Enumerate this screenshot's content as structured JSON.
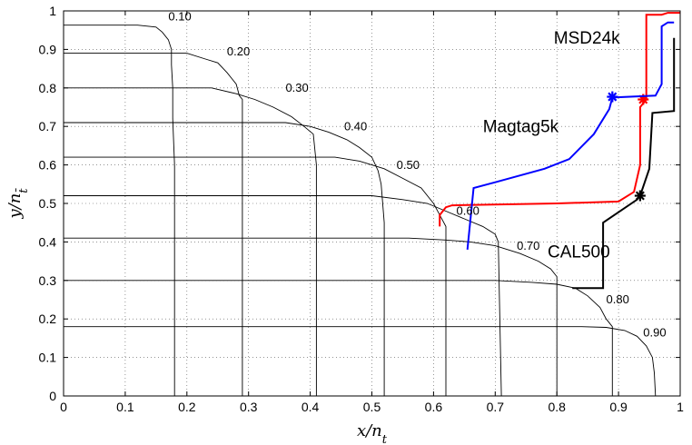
{
  "chart_data": {
    "type": "line",
    "xlabel": "x/n_t",
    "ylabel": "y/n_t̄",
    "xlim": [
      0,
      1
    ],
    "ylim": [
      0,
      1
    ],
    "grid": "dotted",
    "x_ticks": [
      "0",
      "0.1",
      "0.2",
      "0.3",
      "0.4",
      "0.5",
      "0.6",
      "0.7",
      "0.8",
      "0.9",
      "1"
    ],
    "y_ticks": [
      "0",
      "0.1",
      "0.2",
      "0.3",
      "0.4",
      "0.5",
      "0.6",
      "0.7",
      "0.8",
      "0.9",
      "1"
    ],
    "contours": [
      {
        "label": "0.10",
        "label_at": [
          0.17,
          0.975
        ],
        "points": [
          [
            0,
            0.963
          ],
          [
            0.12,
            0.963
          ],
          [
            0.15,
            0.958
          ],
          [
            0.16,
            0.945
          ],
          [
            0.17,
            0.925
          ],
          [
            0.175,
            0.9
          ],
          [
            0.175,
            0.86
          ],
          [
            0.177,
            0.8
          ],
          [
            0.177,
            0.72
          ],
          [
            0.18,
            0.6
          ],
          [
            0.18,
            0.0
          ]
        ]
      },
      {
        "label": "0.20",
        "label_at": [
          0.265,
          0.885
        ],
        "points": [
          [
            0,
            0.89
          ],
          [
            0.2,
            0.89
          ],
          [
            0.23,
            0.875
          ],
          [
            0.25,
            0.865
          ],
          [
            0.265,
            0.84
          ],
          [
            0.28,
            0.81
          ],
          [
            0.285,
            0.78
          ],
          [
            0.29,
            0.77
          ],
          [
            0.29,
            0.0
          ]
        ]
      },
      {
        "label": "0.30",
        "label_at": [
          0.36,
          0.79
        ],
        "points": [
          [
            0,
            0.8
          ],
          [
            0.24,
            0.8
          ],
          [
            0.28,
            0.785
          ],
          [
            0.31,
            0.77
          ],
          [
            0.34,
            0.75
          ],
          [
            0.37,
            0.725
          ],
          [
            0.39,
            0.7
          ],
          [
            0.405,
            0.68
          ],
          [
            0.41,
            0.6
          ],
          [
            0.41,
            0.0
          ]
        ]
      },
      {
        "label": "0.40",
        "label_at": [
          0.455,
          0.69
        ],
        "points": [
          [
            0,
            0.71
          ],
          [
            0.36,
            0.71
          ],
          [
            0.4,
            0.7
          ],
          [
            0.43,
            0.685
          ],
          [
            0.46,
            0.665
          ],
          [
            0.48,
            0.645
          ],
          [
            0.5,
            0.62
          ],
          [
            0.51,
            0.585
          ],
          [
            0.515,
            0.55
          ],
          [
            0.52,
            0.45
          ],
          [
            0.52,
            0.0
          ]
        ]
      },
      {
        "label": "0.50",
        "label_at": [
          0.54,
          0.59
        ],
        "points": [
          [
            0,
            0.62
          ],
          [
            0.44,
            0.62
          ],
          [
            0.48,
            0.61
          ],
          [
            0.52,
            0.59
          ],
          [
            0.55,
            0.565
          ],
          [
            0.58,
            0.54
          ],
          [
            0.6,
            0.5
          ],
          [
            0.61,
            0.47
          ],
          [
            0.62,
            0.44
          ],
          [
            0.62,
            0.0
          ]
        ]
      },
      {
        "label": "0.60",
        "label_at": [
          0.637,
          0.47
        ],
        "points": [
          [
            0,
            0.52
          ],
          [
            0.5,
            0.52
          ],
          [
            0.55,
            0.51
          ],
          [
            0.59,
            0.5
          ],
          [
            0.62,
            0.48
          ],
          [
            0.65,
            0.46
          ],
          [
            0.68,
            0.44
          ],
          [
            0.7,
            0.42
          ],
          [
            0.705,
            0.4
          ],
          [
            0.71,
            0.0
          ]
        ]
      },
      {
        "label": "0.70",
        "label_at": [
          0.735,
          0.38
        ],
        "points": [
          [
            0,
            0.41
          ],
          [
            0.56,
            0.41
          ],
          [
            0.62,
            0.405
          ],
          [
            0.66,
            0.4
          ],
          [
            0.7,
            0.39
          ],
          [
            0.74,
            0.37
          ],
          [
            0.77,
            0.35
          ],
          [
            0.79,
            0.33
          ],
          [
            0.8,
            0.31
          ],
          [
            0.8,
            0.0
          ]
        ]
      },
      {
        "label": "0.80",
        "label_at": [
          0.88,
          0.24
        ],
        "points": [
          [
            0,
            0.3
          ],
          [
            0.7,
            0.3
          ],
          [
            0.76,
            0.295
          ],
          [
            0.8,
            0.29
          ],
          [
            0.83,
            0.28
          ],
          [
            0.85,
            0.26
          ],
          [
            0.87,
            0.23
          ],
          [
            0.88,
            0.2
          ],
          [
            0.89,
            0.18
          ],
          [
            0.89,
            0.0
          ]
        ]
      },
      {
        "label": "0.90",
        "label_at": [
          0.94,
          0.155
        ],
        "points": [
          [
            0,
            0.18
          ],
          [
            0.84,
            0.18
          ],
          [
            0.88,
            0.178
          ],
          [
            0.91,
            0.17
          ],
          [
            0.93,
            0.155
          ],
          [
            0.945,
            0.13
          ],
          [
            0.955,
            0.1
          ],
          [
            0.958,
            0.06
          ],
          [
            0.96,
            0.0
          ]
        ]
      }
    ],
    "series": [
      {
        "name": "MSD24k",
        "color": "#ff0000",
        "label_at": [
          0.795,
          0.915
        ],
        "points": [
          [
            0.61,
            0.44
          ],
          [
            0.61,
            0.47
          ],
          [
            0.62,
            0.49
          ],
          [
            0.63,
            0.495
          ],
          [
            0.8,
            0.5
          ],
          [
            0.9,
            0.505
          ],
          [
            0.925,
            0.53
          ],
          [
            0.935,
            0.6
          ],
          [
            0.935,
            0.75
          ],
          [
            0.945,
            0.77
          ],
          [
            0.945,
            0.99
          ],
          [
            0.97,
            0.99
          ],
          [
            0.98,
            0.995
          ],
          [
            1.0,
            0.995
          ]
        ],
        "marker_at": [
          0.94,
          0.77
        ]
      },
      {
        "name": "Magtag5k",
        "color": "#0000ff",
        "label_at": [
          0.68,
          0.685
        ],
        "points": [
          [
            0.655,
            0.38
          ],
          [
            0.665,
            0.54
          ],
          [
            0.7,
            0.555
          ],
          [
            0.78,
            0.59
          ],
          [
            0.82,
            0.615
          ],
          [
            0.86,
            0.68
          ],
          [
            0.885,
            0.745
          ],
          [
            0.89,
            0.775
          ],
          [
            0.96,
            0.78
          ],
          [
            0.97,
            0.81
          ],
          [
            0.97,
            0.96
          ],
          [
            0.98,
            0.97
          ],
          [
            0.99,
            0.97
          ]
        ],
        "marker_at": [
          0.89,
          0.777
        ]
      },
      {
        "name": "CAL500",
        "color": "#000000",
        "label_at": [
          0.785,
          0.36
        ],
        "points": [
          [
            0.825,
            0.28
          ],
          [
            0.875,
            0.28
          ],
          [
            0.875,
            0.45
          ],
          [
            0.93,
            0.51
          ],
          [
            0.935,
            0.52
          ],
          [
            0.95,
            0.59
          ],
          [
            0.955,
            0.735
          ],
          [
            0.99,
            0.74
          ],
          [
            0.99,
            0.93
          ]
        ],
        "marker_at": [
          0.935,
          0.52
        ]
      }
    ]
  }
}
